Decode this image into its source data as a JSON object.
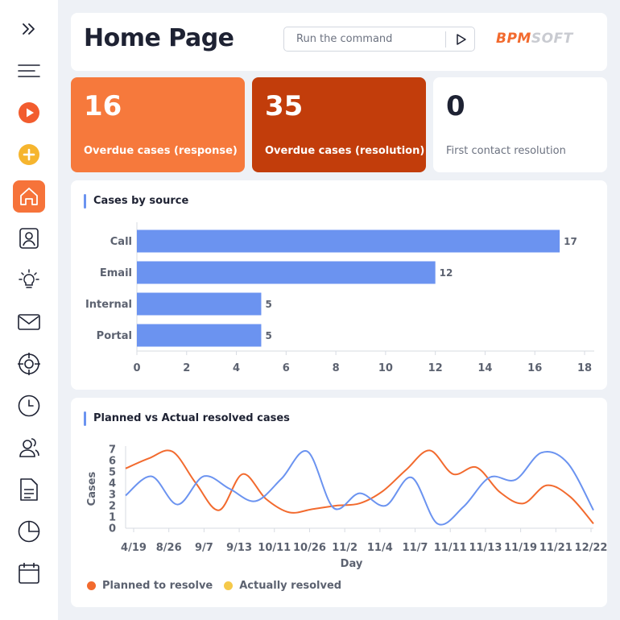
{
  "colors": {
    "accent": "#f6733a",
    "kpi_response": "#f6793c",
    "kpi_resolution": "#c23d0b",
    "bar": "#6b93f0",
    "planned": "#f26a2e",
    "actual": "#6b93f0",
    "actual_legend": "#f5c94a"
  },
  "sidebar": {
    "items": [
      {
        "icon": "expand-icon"
      },
      {
        "icon": "menu-icon"
      },
      {
        "icon": "play-icon"
      },
      {
        "icon": "add-icon"
      },
      {
        "icon": "home-icon",
        "active": true
      },
      {
        "icon": "contact-icon"
      },
      {
        "icon": "idea-icon"
      },
      {
        "icon": "mail-icon"
      },
      {
        "icon": "target-icon"
      },
      {
        "icon": "clock-icon"
      },
      {
        "icon": "users-icon"
      },
      {
        "icon": "document-icon"
      },
      {
        "icon": "pie-chart-icon"
      },
      {
        "icon": "calendar-icon"
      }
    ]
  },
  "header": {
    "title": "Home Page",
    "command_placeholder": "Run the command",
    "logo_part1": "BPM",
    "logo_part2": "SOFT"
  },
  "kpis": [
    {
      "value": "16",
      "label": "Overdue cases (response)"
    },
    {
      "value": "35",
      "label": "Overdue cases (resolution)"
    },
    {
      "value": "0",
      "label": "First contact resolution"
    }
  ],
  "cases_by_source": {
    "title": "Cases by source"
  },
  "planned_vs_actual": {
    "title": "Planned vs Actual resolved cases",
    "legend": [
      "Planned to resolve",
      "Actually resolved"
    ]
  },
  "chart_data": [
    {
      "type": "bar",
      "orientation": "horizontal",
      "title": "Cases by source",
      "categories": [
        "Call",
        "Email",
        "Internal",
        "Portal"
      ],
      "values": [
        17,
        12,
        5,
        5
      ],
      "xlim": [
        0,
        18
      ],
      "xticks": [
        0,
        2,
        4,
        6,
        8,
        10,
        12,
        14,
        16,
        18
      ],
      "data_labels": true,
      "grid": false
    },
    {
      "type": "line",
      "title": "Planned vs Actual resolved cases",
      "xlabel": "Day",
      "ylabel": "Cases",
      "ylim": [
        0,
        7
      ],
      "yticks": [
        0,
        1,
        2,
        3,
        4,
        5,
        6,
        7
      ],
      "xtick_labels": [
        "4/19",
        "8/26",
        "9/7",
        "9/13",
        "10/11",
        "10/26",
        "11/2",
        "11/4",
        "11/7",
        "11/11",
        "11/13",
        "11/19",
        "11/21",
        "12/22"
      ],
      "legend_position": "bottom-left",
      "series": [
        {
          "name": "Planned to resolve",
          "smooth": true,
          "values": [
            5.3,
            6.2,
            6.8,
            4.0,
            1.6,
            4.8,
            2.6,
            1.4,
            1.7,
            2.0,
            2.2,
            3.3,
            5.2,
            6.9,
            4.8,
            5.4,
            3.2,
            2.2,
            3.8,
            2.8,
            0.4
          ]
        },
        {
          "name": "Actually resolved",
          "smooth": true,
          "values": [
            2.9,
            4.6,
            2.1,
            4.6,
            3.5,
            2.4,
            4.4,
            6.8,
            1.8,
            3.1,
            2.0,
            4.5,
            0.4,
            1.9,
            4.5,
            4.3,
            6.7,
            5.8,
            1.6
          ]
        }
      ]
    }
  ]
}
